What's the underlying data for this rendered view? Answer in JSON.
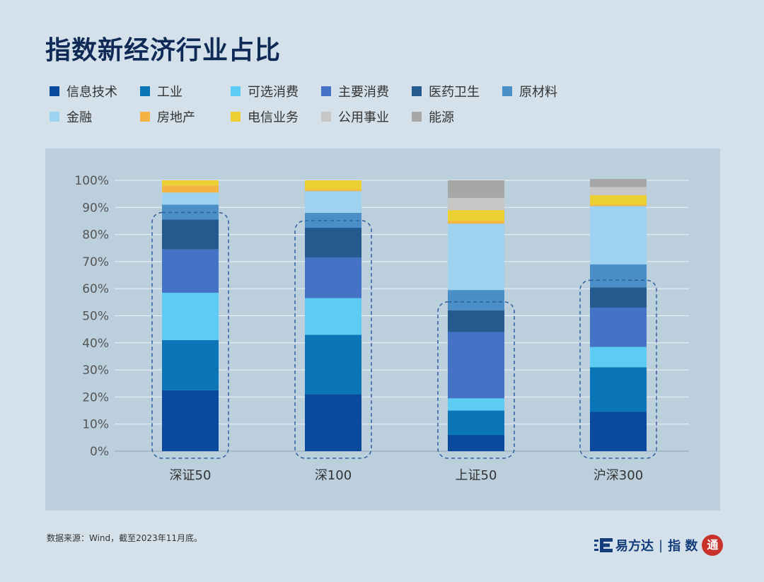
{
  "title": "指数新经济行业占比",
  "legend": [
    {
      "label": "信息技术",
      "color": "#0a4a9c"
    },
    {
      "label": "工业",
      "color": "#0a76b8"
    },
    {
      "label": "可选消费",
      "color": "#5cccf5"
    },
    {
      "label": "主要消费",
      "color": "#4472c4"
    },
    {
      "label": "医药卫生",
      "color": "#245b8f"
    },
    {
      "label": "原材料",
      "color": "#4b8fc8"
    },
    {
      "label": "金融",
      "color": "#9dd2f0"
    },
    {
      "label": "房地产",
      "color": "#f4b443"
    },
    {
      "label": "电信业务",
      "color": "#ecd033"
    },
    {
      "label": "公用事业",
      "color": "#c7c7c7"
    },
    {
      "label": "能源",
      "color": "#a7a7a7"
    }
  ],
  "chart_data": {
    "type": "bar",
    "stacked": true,
    "categories": [
      "深证50",
      "深100",
      "上证50",
      "沪深300"
    ],
    "y_ticks": [
      "0%",
      "10%",
      "20%",
      "30%",
      "40%",
      "50%",
      "60%",
      "70%",
      "80%",
      "90%",
      "100%"
    ],
    "ylim": [
      0,
      100
    ],
    "grid": true,
    "series": [
      {
        "name": "信息技术",
        "values": [
          22.5,
          21.0,
          6.0,
          14.5
        ]
      },
      {
        "name": "工业",
        "values": [
          18.5,
          22.0,
          9.0,
          16.5
        ]
      },
      {
        "name": "可选消费",
        "values": [
          17.5,
          13.5,
          4.5,
          7.5
        ]
      },
      {
        "name": "主要消费",
        "values": [
          16.0,
          15.0,
          24.5,
          14.5
        ]
      },
      {
        "name": "医药卫生",
        "values": [
          11.0,
          11.0,
          8.0,
          7.5
        ]
      },
      {
        "name": "原材料",
        "values": [
          5.5,
          5.5,
          7.5,
          8.5
        ]
      },
      {
        "name": "金融",
        "values": [
          4.5,
          8.0,
          24.5,
          21.5
        ]
      },
      {
        "name": "房地产",
        "values": [
          2.5,
          0.5,
          1.0,
          0.5
        ]
      },
      {
        "name": "电信业务",
        "values": [
          2.0,
          3.5,
          4.0,
          3.5
        ]
      },
      {
        "name": "公用事业",
        "values": [
          0.0,
          0.0,
          4.5,
          3.0
        ]
      },
      {
        "name": "能源",
        "values": [
          0.0,
          0.0,
          6.5,
          3.0
        ]
      }
    ],
    "highlight_tops": [
      85.5,
      82.5,
      52.5,
      60.5
    ]
  },
  "footer": {
    "source": "数据来源：Wind，截至2023年11月底。",
    "brand_name": "易方达",
    "brand_sep": "|",
    "brand_product": "指 数",
    "brand_seal": "通"
  }
}
